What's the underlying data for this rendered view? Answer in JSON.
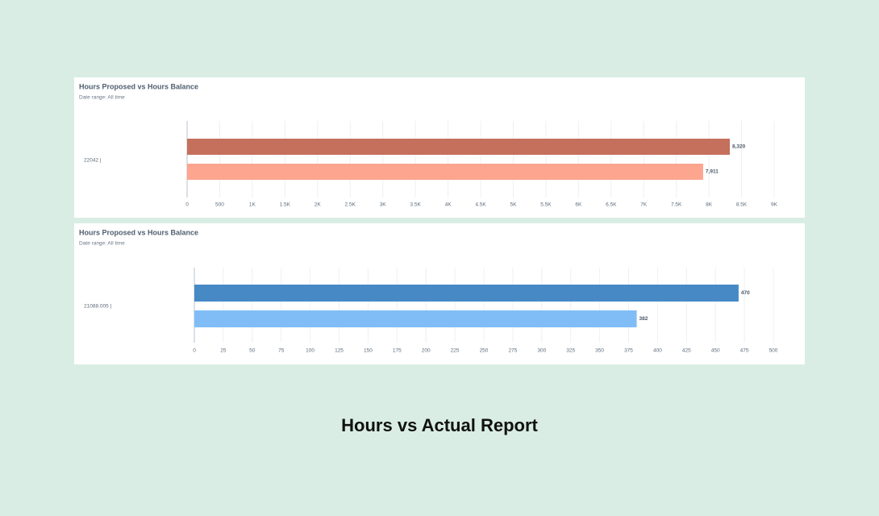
{
  "chart_data": [
    {
      "type": "bar",
      "orientation": "horizontal",
      "title": "Hours Proposed vs Hours Balance",
      "subtitle": "Date range: All time",
      "categories": [
        "22042 |"
      ],
      "series": [
        {
          "color": "#c4705c",
          "values": [
            8320
          ],
          "value_labels": [
            "8,320"
          ]
        },
        {
          "color": "#fda58f",
          "values": [
            7911
          ],
          "value_labels": [
            "7,911"
          ]
        }
      ],
      "xlim": [
        0,
        9000
      ],
      "xticks": [
        0,
        500,
        {
          "value": 1000,
          "label": "1K"
        },
        {
          "value": 1500,
          "label": "1.5K"
        },
        {
          "value": 2000,
          "label": "2K"
        },
        {
          "value": 2500,
          "label": "2.5K"
        },
        {
          "value": 3000,
          "label": "3K"
        },
        {
          "value": 3500,
          "label": "3.5K"
        },
        {
          "value": 4000,
          "label": "4K"
        },
        {
          "value": 4500,
          "label": "4.5K"
        },
        {
          "value": 5000,
          "label": "5K"
        },
        {
          "value": 5500,
          "label": "5.5K"
        },
        {
          "value": 6000,
          "label": "6K"
        },
        {
          "value": 6500,
          "label": "6.5K"
        },
        {
          "value": 7000,
          "label": "7K"
        },
        {
          "value": 7500,
          "label": "7.5K"
        },
        {
          "value": 8000,
          "label": "8K"
        },
        {
          "value": 8500,
          "label": "8.5K"
        },
        {
          "value": 9000,
          "label": "9K"
        }
      ],
      "grid": true
    },
    {
      "type": "bar",
      "orientation": "horizontal",
      "title": "Hours Proposed vs Hours Balance",
      "subtitle": "Date range: All time",
      "categories": [
        "21088.005 |"
      ],
      "series": [
        {
          "color": "#4789c5",
          "values": [
            470
          ]
        },
        {
          "color": "#80bdf7",
          "values": [
            382
          ]
        }
      ],
      "xlim": [
        0,
        500
      ],
      "xticks": [
        0,
        25,
        50,
        75,
        100,
        125,
        150,
        175,
        200,
        225,
        250,
        275,
        300,
        325,
        350,
        375,
        400,
        425,
        450,
        475,
        500
      ],
      "grid": true
    }
  ],
  "caption": "Hours vs Actual Report"
}
